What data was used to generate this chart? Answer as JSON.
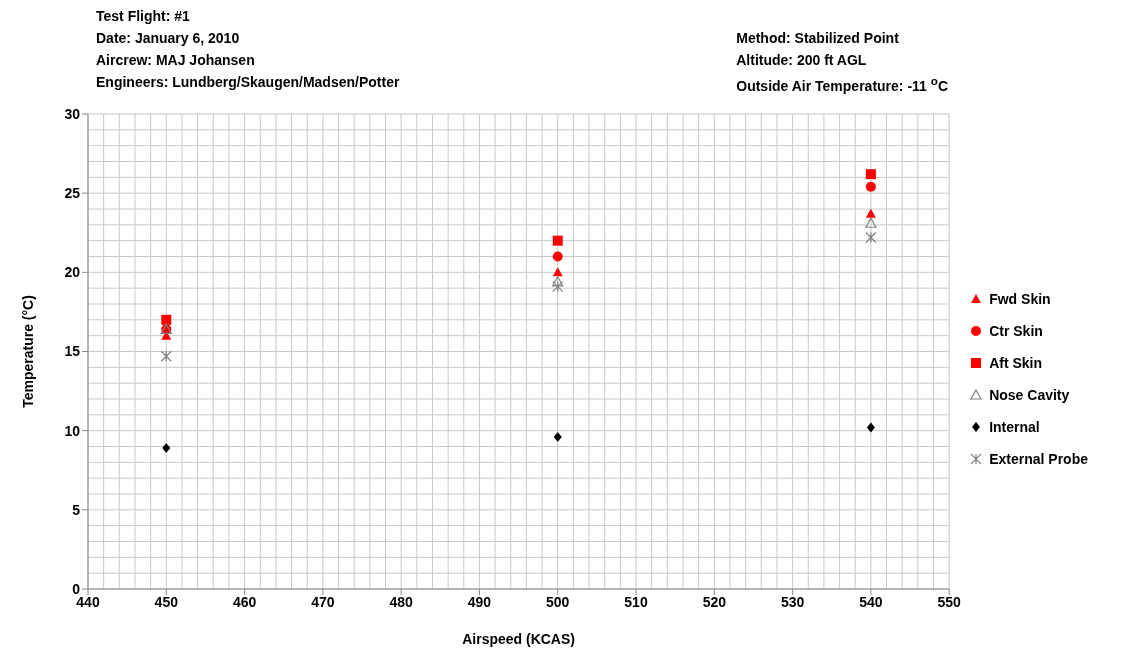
{
  "chart_data": {
    "type": "scatter",
    "xlabel": "Airspeed (KCAS)",
    "ylabel": "Temperature (°C)",
    "annotations": [
      "Test Flight:  #1",
      "Date:  January 6, 2010",
      "Aircrew:  MAJ Johansen",
      "Engineers:  Lundberg/Skaugen/Madsen/Potter",
      "Method:  Stabilized Point",
      "Altitude:  200 ft AGL",
      "Outside Air Temperature:  -11 $^{o}$C"
    ],
    "x": [
      450,
      500,
      540
    ],
    "series": [
      {
        "name": "Fwd Skin",
        "color": "#ff0000",
        "marker": "triangle",
        "values": [
          16.0,
          20.0,
          23.7
        ]
      },
      {
        "name": "Ctr Skin",
        "color": "#ff0000",
        "marker": "circle",
        "values": [
          16.4,
          21.0,
          25.4
        ]
      },
      {
        "name": "Aft Skin",
        "color": "#ff0000",
        "marker": "square",
        "values": [
          17.0,
          22.0,
          26.2
        ]
      },
      {
        "name": "Nose Cavity",
        "color": "#808080",
        "marker": "triangle",
        "values": [
          16.4,
          19.4,
          23.1
        ]
      },
      {
        "name": "Internal",
        "color": "#000000",
        "marker": "diamond",
        "values": [
          8.9,
          9.6,
          10.2
        ]
      },
      {
        "name": "External Probe",
        "color": "#808080",
        "marker": "cross",
        "values": [
          14.7,
          19.1,
          22.2
        ]
      }
    ],
    "xlim": [
      440,
      550
    ],
    "xticks": [
      440,
      450,
      460,
      470,
      480,
      490,
      500,
      510,
      520,
      530,
      540,
      550
    ],
    "ylim": [
      0,
      30
    ],
    "yticks": [
      0,
      5,
      10,
      15,
      20,
      25,
      30
    ],
    "grid": true,
    "legend": "right"
  }
}
